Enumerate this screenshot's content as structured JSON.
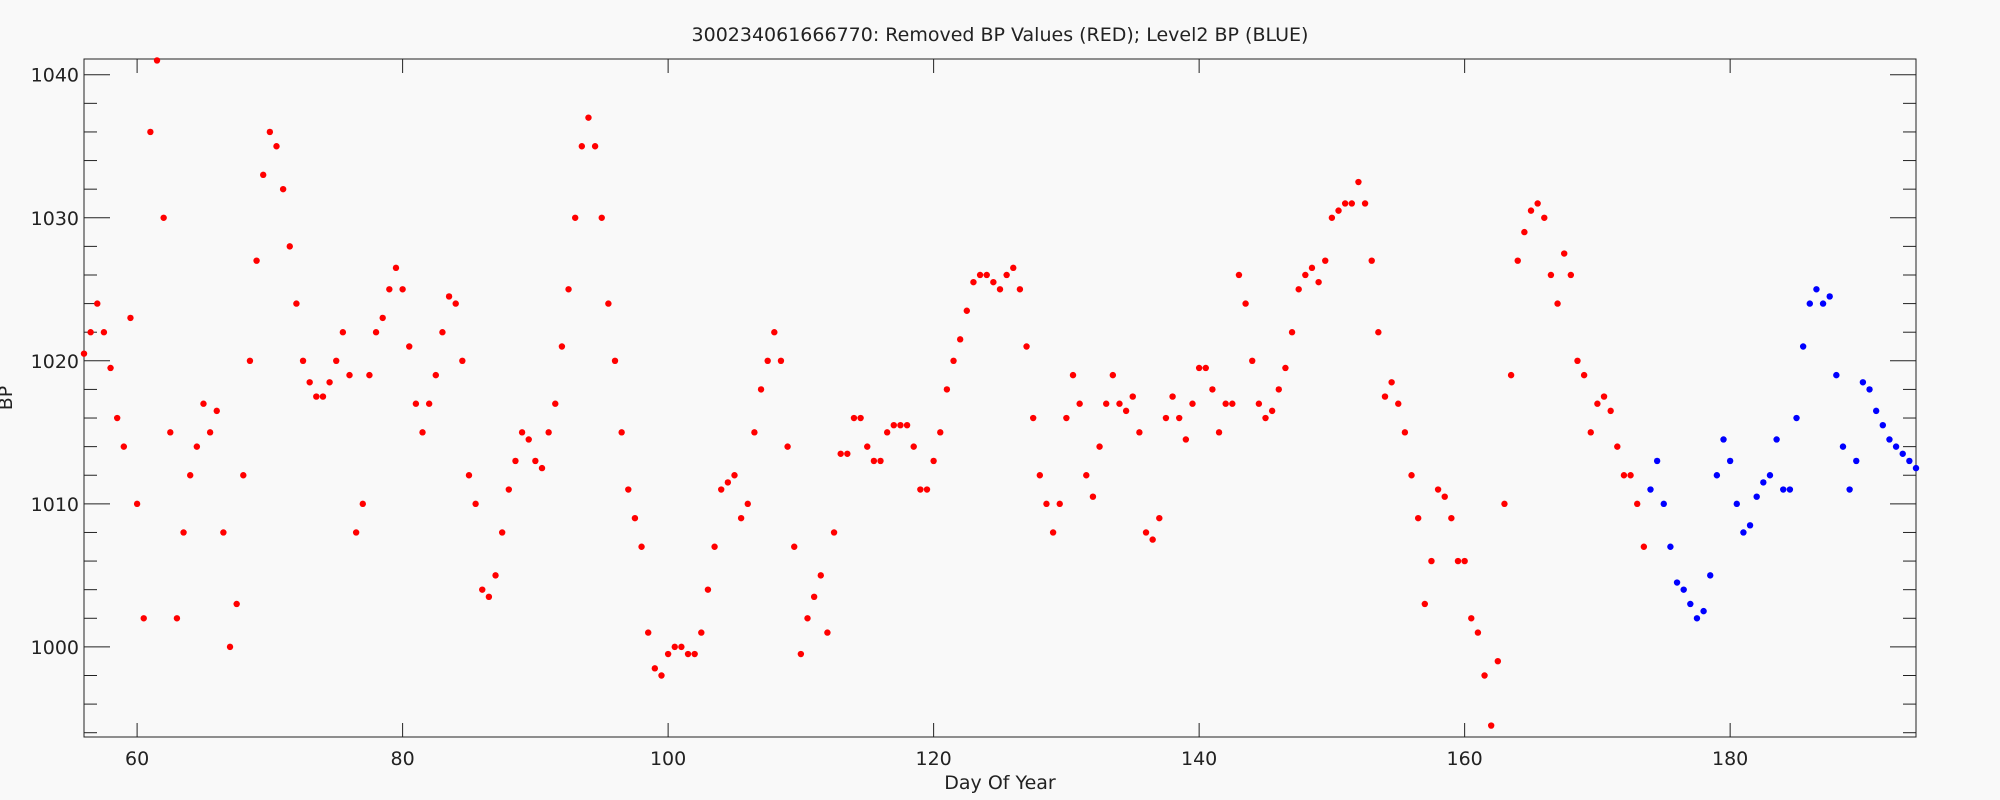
{
  "chart_data": {
    "type": "scatter",
    "title": "300234061666770: Removed BP Values (RED); Level2 BP (BLUE)",
    "x_label": "Day Of Year",
    "y_label": "BP",
    "xlim": [
      56,
      194
    ],
    "ylim": [
      993.7,
      1041.1
    ],
    "xticks": [
      60,
      80,
      100,
      120,
      140,
      160,
      180
    ],
    "yticks": [
      1000,
      1010,
      1020,
      1030,
      1040
    ],
    "yminorticks": [
      994,
      996,
      998,
      1002,
      1004,
      1006,
      1008,
      1012,
      1014,
      1016,
      1018,
      1022,
      1024,
      1026,
      1028,
      1032,
      1034,
      1036,
      1038
    ],
    "grid": false,
    "series": [
      {
        "color": "#ff0000",
        "x": [
          56,
          56.5,
          57,
          57.5,
          58,
          58.5,
          59,
          59.5,
          60,
          60.5,
          61,
          61.5,
          62,
          62.5,
          63,
          63.5,
          64,
          64.5,
          65,
          65.5,
          66,
          66.5,
          67,
          67.5,
          68,
          68.5,
          69,
          69.5,
          70,
          70.5,
          71,
          71.5,
          72,
          72.5,
          73,
          73.5,
          74,
          74.5,
          75,
          75.5,
          76,
          76.5,
          77,
          77.5,
          78,
          78.5,
          79,
          79.5,
          80,
          80.5,
          81,
          81.5,
          82,
          82.5,
          83,
          83.5,
          84,
          84.5,
          85,
          85.5,
          86,
          86.5,
          87,
          87.5,
          88,
          88.5,
          89,
          89.5,
          90,
          90.5,
          91,
          91.5,
          92,
          92.5,
          93,
          93.5,
          94,
          94.5,
          95,
          95.5,
          96,
          96.5,
          97,
          97.5,
          98,
          98.5,
          99,
          99.5,
          100,
          100.5,
          101,
          101.5,
          102,
          102.5,
          103,
          103.5,
          104,
          104.5,
          105,
          105.5,
          106,
          106.5,
          107,
          107.5,
          108,
          108.5,
          109,
          109.5,
          110,
          110.5,
          111,
          111.5,
          112,
          112.5,
          113,
          113.5,
          114,
          114.5,
          115,
          115.5,
          116,
          116.5,
          117,
          117.5,
          118,
          118.5,
          119,
          119.5,
          120,
          120.5,
          121,
          121.5,
          122,
          122.5,
          123,
          123.5,
          124,
          124.5,
          125,
          125.5,
          126,
          126.5,
          127,
          127.5,
          128,
          128.5,
          129,
          129.5,
          130,
          130.5,
          131,
          131.5,
          132,
          132.5,
          133,
          133.5,
          134,
          134.5,
          135,
          135.5,
          136,
          136.5,
          137,
          137.5,
          138,
          138.5,
          139,
          139.5,
          140,
          140.5,
          141,
          141.5,
          142,
          142.5,
          143,
          143.5,
          144,
          144.5,
          145,
          145.5,
          146,
          146.5,
          147,
          147.5,
          148,
          148.5,
          149,
          149.5,
          150,
          150.5,
          151,
          151.5,
          152,
          152.5,
          153,
          153.5,
          154,
          154.5,
          155,
          155.5,
          156,
          156.5,
          157,
          157.5,
          158,
          158.5,
          159,
          159.5,
          160,
          160.5,
          161,
          161.5,
          162,
          162.5,
          163,
          163.5,
          164,
          164.5,
          165,
          165.5,
          166,
          166.5,
          167,
          167.5,
          168,
          168.5,
          169,
          169.5,
          170,
          170.5,
          171,
          171.5,
          172,
          172.5,
          173,
          173.5
        ],
        "values": [
          1020.5,
          1022,
          1024,
          1022,
          1019.5,
          1016,
          1014,
          1023,
          1010,
          1002,
          1036,
          1041,
          1030,
          1015,
          1002,
          1008,
          1012,
          1014,
          1017,
          1015,
          1016.5,
          1008,
          1000,
          1003,
          1012,
          1020,
          1027,
          1033,
          1036,
          1035,
          1032,
          1028,
          1024,
          1020,
          1018.5,
          1017.5,
          1017.5,
          1018.5,
          1020,
          1022,
          1019,
          1008,
          1010,
          1019,
          1022,
          1023,
          1025,
          1026.5,
          1025,
          1021,
          1017,
          1015,
          1017,
          1019,
          1022,
          1024.5,
          1024,
          1020,
          1012,
          1010,
          1004,
          1003.5,
          1005,
          1008,
          1011,
          1013,
          1015,
          1014.5,
          1013,
          1012.5,
          1015,
          1017,
          1021,
          1025,
          1030,
          1035,
          1037,
          1035,
          1030,
          1024,
          1020,
          1015,
          1011,
          1009,
          1007,
          1001,
          998.5,
          998,
          999.5,
          1000,
          1000,
          999.5,
          999.5,
          1001,
          1004,
          1007,
          1011,
          1011.5,
          1012,
          1009,
          1010,
          1015,
          1018,
          1020,
          1022,
          1020,
          1014,
          1007,
          999.5,
          1002,
          1003.5,
          1005,
          1001,
          1008,
          1013.5,
          1013.5,
          1016,
          1016,
          1014,
          1013,
          1013,
          1015,
          1015.5,
          1015.5,
          1015.5,
          1014,
          1011,
          1011,
          1013,
          1015,
          1018,
          1020,
          1021.5,
          1023.5,
          1025.5,
          1026,
          1026,
          1025.5,
          1025,
          1026,
          1026.5,
          1025,
          1021,
          1016,
          1012,
          1010,
          1008,
          1010,
          1016,
          1019,
          1017,
          1012,
          1010.5,
          1014,
          1017,
          1019,
          1017,
          1016.5,
          1017.5,
          1015,
          1008,
          1007.5,
          1009,
          1016,
          1017.5,
          1016,
          1014.5,
          1017,
          1019.5,
          1019.5,
          1018,
          1015,
          1017,
          1017,
          1026,
          1024,
          1020,
          1017,
          1016,
          1016.5,
          1018,
          1019.5,
          1022,
          1025,
          1026,
          1026.5,
          1025.5,
          1027,
          1030,
          1030.5,
          1031,
          1031,
          1032.5,
          1031,
          1027,
          1022,
          1017.5,
          1018.5,
          1017,
          1015,
          1012,
          1009,
          1003,
          1006,
          1011,
          1010.5,
          1009,
          1006,
          1006,
          1002,
          1001,
          998,
          994.5,
          999,
          1010,
          1019,
          1027,
          1029,
          1030.5,
          1031,
          1030,
          1026,
          1024,
          1027.5,
          1026,
          1020,
          1019,
          1015,
          1017,
          1017.5,
          1016.5,
          1014,
          1012,
          1012,
          1010,
          1007
        ]
      },
      {
        "color": "#0000ff",
        "x": [
          174,
          174.5,
          175,
          175.5,
          176,
          176.5,
          177,
          177.5,
          178,
          178.5,
          179,
          179.5,
          180,
          180.5,
          181,
          181.5,
          182,
          182.5,
          183,
          183.5,
          184,
          184.5,
          185,
          185.5,
          186,
          186.5,
          187,
          187.5,
          188,
          188.5,
          189,
          189.5,
          190,
          190.5,
          191,
          191.5,
          192,
          192.5,
          193,
          193.5,
          194
        ],
        "values": [
          1011,
          1013,
          1010,
          1007,
          1004.5,
          1004,
          1003,
          1002,
          1002.5,
          1005,
          1012,
          1014.5,
          1013,
          1010,
          1008,
          1008.5,
          1010.5,
          1011.5,
          1012,
          1014.5,
          1011,
          1011,
          1016,
          1021,
          1024,
          1025,
          1024,
          1024.5,
          1019,
          1014,
          1011,
          1013,
          1018.5,
          1018,
          1016.5,
          1015.5,
          1014.5,
          1014,
          1013.5,
          1013,
          1012.5
        ]
      }
    ]
  }
}
